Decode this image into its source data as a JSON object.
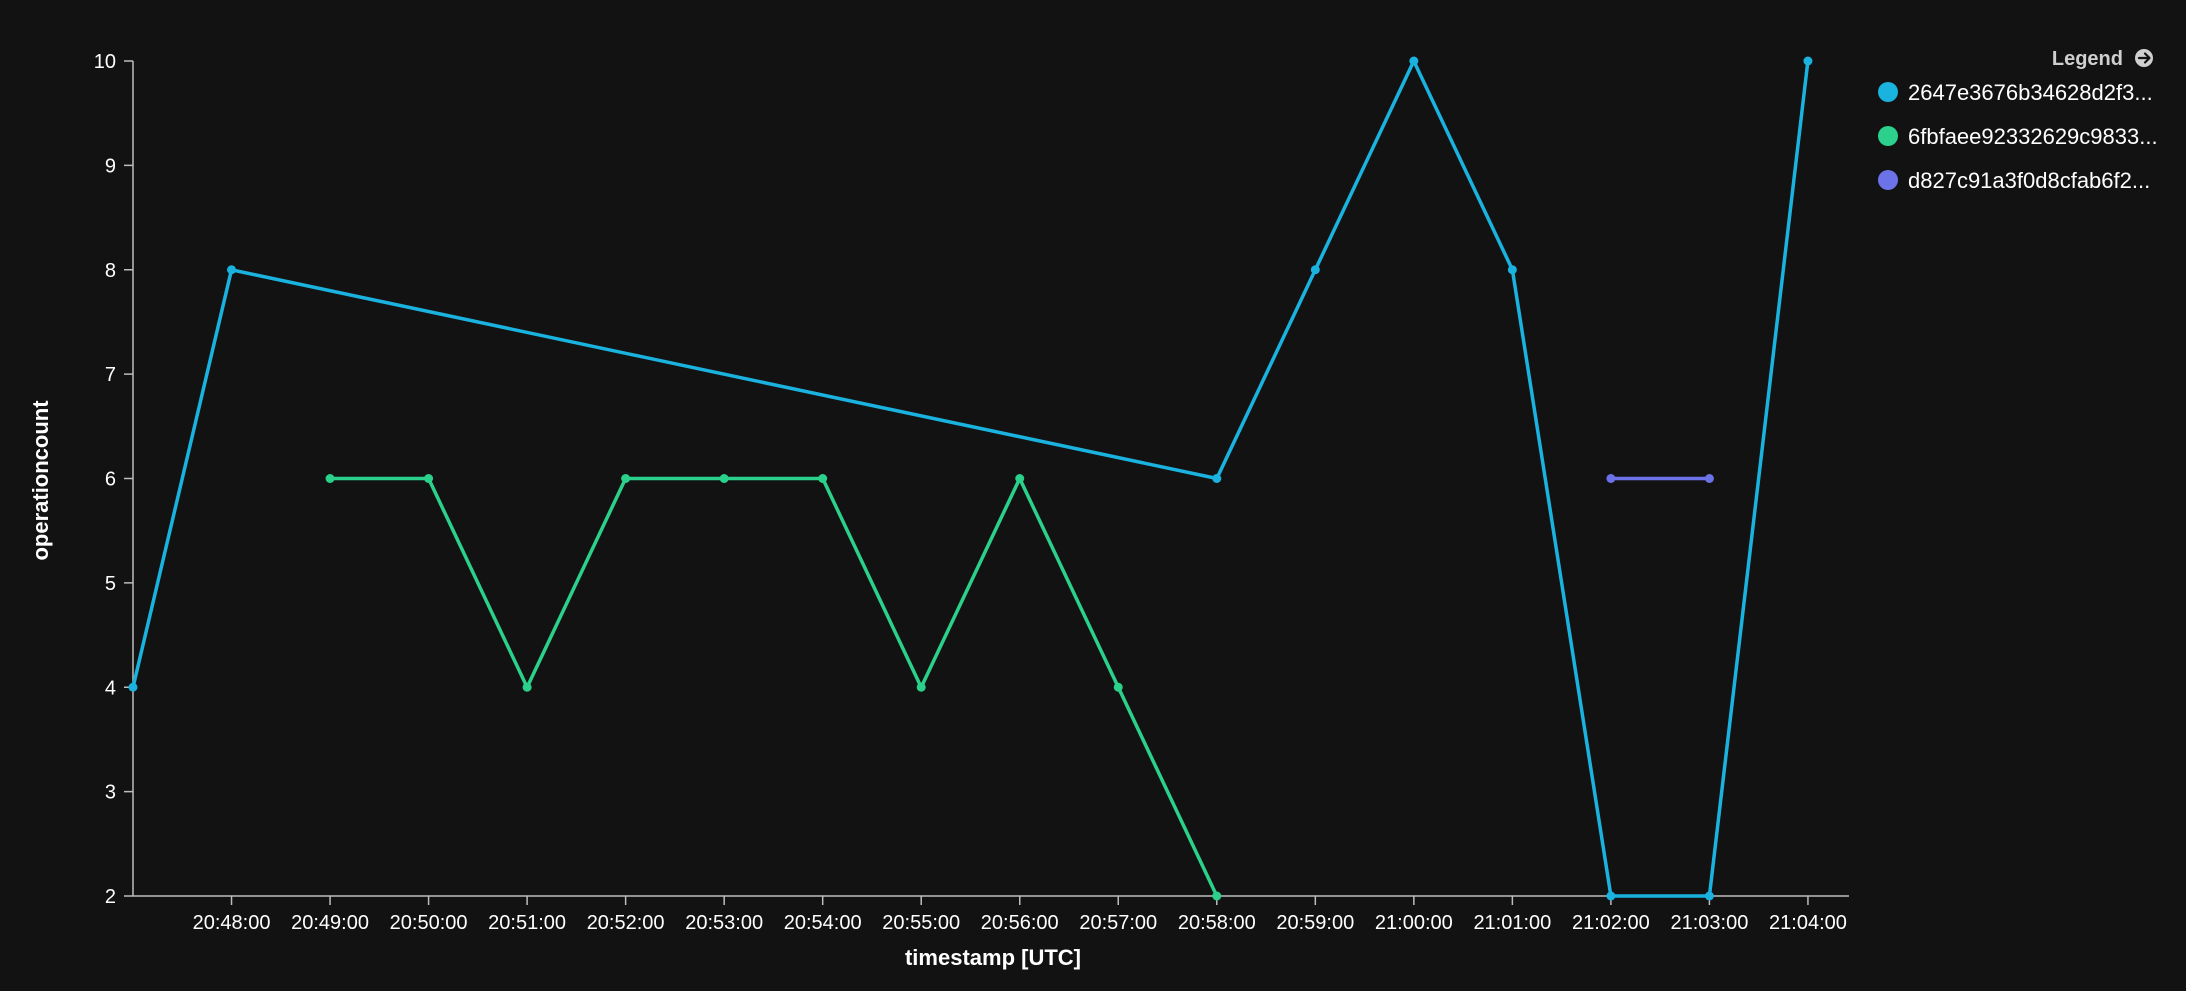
{
  "chart_data": {
    "type": "line",
    "xlabel": "timestamp [UTC]",
    "ylabel": "operationcount",
    "ylim": [
      2,
      10
    ],
    "xlim": [
      "20:47:00",
      "21:04:25"
    ],
    "yticks": [
      "2",
      "3",
      "4",
      "5",
      "6",
      "7",
      "8",
      "9",
      "10"
    ],
    "xticks": [
      "20:48:00",
      "20:49:00",
      "20:50:00",
      "20:51:00",
      "20:52:00",
      "20:53:00",
      "20:54:00",
      "20:55:00",
      "20:56:00",
      "20:57:00",
      "20:58:00",
      "20:59:00",
      "21:00:00",
      "21:01:00",
      "21:02:00",
      "21:03:00",
      "21:04:00"
    ],
    "grid": false,
    "legend": {
      "title": "Legend",
      "position": "right",
      "icon": "arrow-right-circle-icon"
    },
    "series": [
      {
        "name": "2647e3676b34628d2f3...",
        "color": "#1AB3E0",
        "points": [
          {
            "x": "20:47:00",
            "y": 4
          },
          {
            "x": "20:48:00",
            "y": 8
          },
          {
            "x": "20:58:00",
            "y": 6
          },
          {
            "x": "20:59:00",
            "y": 8
          },
          {
            "x": "21:00:00",
            "y": 10
          },
          {
            "x": "21:01:00",
            "y": 8
          },
          {
            "x": "21:02:00",
            "y": 2
          },
          {
            "x": "21:03:00",
            "y": 2
          },
          {
            "x": "21:04:00",
            "y": 10
          }
        ]
      },
      {
        "name": "6fbfaee92332629c9833...",
        "color": "#2BD18B",
        "points": [
          {
            "x": "20:49:00",
            "y": 6
          },
          {
            "x": "20:50:00",
            "y": 6
          },
          {
            "x": "20:51:00",
            "y": 4
          },
          {
            "x": "20:52:00",
            "y": 6
          },
          {
            "x": "20:53:00",
            "y": 6
          },
          {
            "x": "20:54:00",
            "y": 6
          },
          {
            "x": "20:55:00",
            "y": 4
          },
          {
            "x": "20:56:00",
            "y": 6
          },
          {
            "x": "20:57:00",
            "y": 4
          },
          {
            "x": "20:58:00",
            "y": 2
          }
        ]
      },
      {
        "name": "d827c91a3f0d8cfab6f2...",
        "color": "#6C72E8",
        "points": [
          {
            "x": "21:02:00",
            "y": 6
          },
          {
            "x": "21:03:00",
            "y": 6
          }
        ]
      }
    ]
  }
}
